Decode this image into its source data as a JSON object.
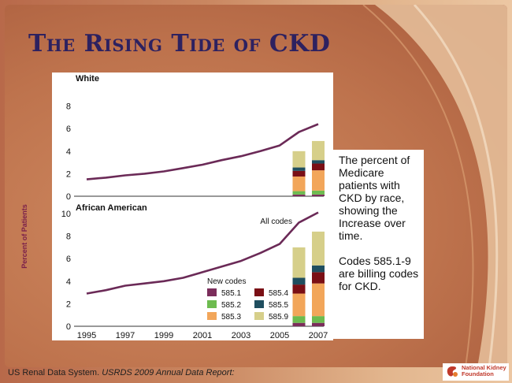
{
  "slide": {
    "title": "The Rising Tide of CKD",
    "footer_source": "US Renal Data System. ",
    "footer_report": "USRDS 2009 Annual Data Report:",
    "logo_line1": "National Kidney",
    "logo_line2": "Foundation"
  },
  "textbox": {
    "para1": "The percent of Medicare patients with CKD by race, showing the Increase over time.",
    "para2": "Codes 585.1-9  are billing codes for CKD."
  },
  "chart_data": {
    "type": "line",
    "ylabel": "Percent of Patients",
    "x_ticks": [
      "1995",
      "1997",
      "1999",
      "2001",
      "2003",
      "2005",
      "2007"
    ],
    "y_ticks": [
      "0",
      "2",
      "4",
      "6",
      "8",
      "10"
    ],
    "legend_title": "New codes",
    "code_series": [
      {
        "name": "585.1",
        "color": "#7b2d5b"
      },
      {
        "name": "585.2",
        "color": "#6dbb4f"
      },
      {
        "name": "585.3",
        "color": "#f2a65a"
      },
      {
        "name": "585.4",
        "color": "#7a0f15"
      },
      {
        "name": "585.5",
        "color": "#1f4e5f"
      },
      {
        "name": "585.9",
        "color": "#d6cf8a"
      }
    ],
    "legend_order": [
      "585.1",
      "585.4",
      "585.2",
      "585.5",
      "585.3",
      "585.9"
    ],
    "panels": [
      {
        "label": "White",
        "ylim": [
          0,
          9
        ],
        "line_label": "",
        "all_codes": {
          "x": [
            1995,
            1996,
            1997,
            1998,
            1999,
            2000,
            2001,
            2002,
            2003,
            2004,
            2005,
            2006,
            2007
          ],
          "y": [
            1.5,
            1.65,
            1.85,
            2.0,
            2.2,
            2.5,
            2.8,
            3.2,
            3.55,
            4.0,
            4.5,
            5.7,
            6.4
          ]
        },
        "stacks": [
          {
            "year": 2006,
            "values": {
              "585.1": 0.15,
              "585.2": 0.3,
              "585.3": 1.3,
              "585.4": 0.5,
              "585.5": 0.3,
              "585.9": 1.45
            }
          },
          {
            "year": 2007,
            "values": {
              "585.1": 0.15,
              "585.2": 0.35,
              "585.3": 1.8,
              "585.4": 0.6,
              "585.5": 0.3,
              "585.9": 1.7
            }
          }
        ]
      },
      {
        "label": "African American",
        "ylim": [
          0,
          10.5
        ],
        "line_label": "All codes",
        "all_codes": {
          "x": [
            1995,
            1996,
            1997,
            1998,
            1999,
            2000,
            2001,
            2002,
            2003,
            2004,
            2005,
            2006,
            2007
          ],
          "y": [
            2.9,
            3.2,
            3.6,
            3.8,
            4.0,
            4.3,
            4.8,
            5.3,
            5.8,
            6.5,
            7.3,
            9.2,
            10.1
          ]
        },
        "stacks": [
          {
            "year": 2006,
            "values": {
              "585.1": 0.3,
              "585.2": 0.6,
              "585.3": 2.0,
              "585.4": 0.8,
              "585.5": 0.6,
              "585.9": 2.7
            }
          },
          {
            "year": 2007,
            "values": {
              "585.1": 0.3,
              "585.2": 0.6,
              "585.3": 2.9,
              "585.4": 1.0,
              "585.5": 0.6,
              "585.9": 3.0
            }
          }
        ]
      }
    ]
  }
}
